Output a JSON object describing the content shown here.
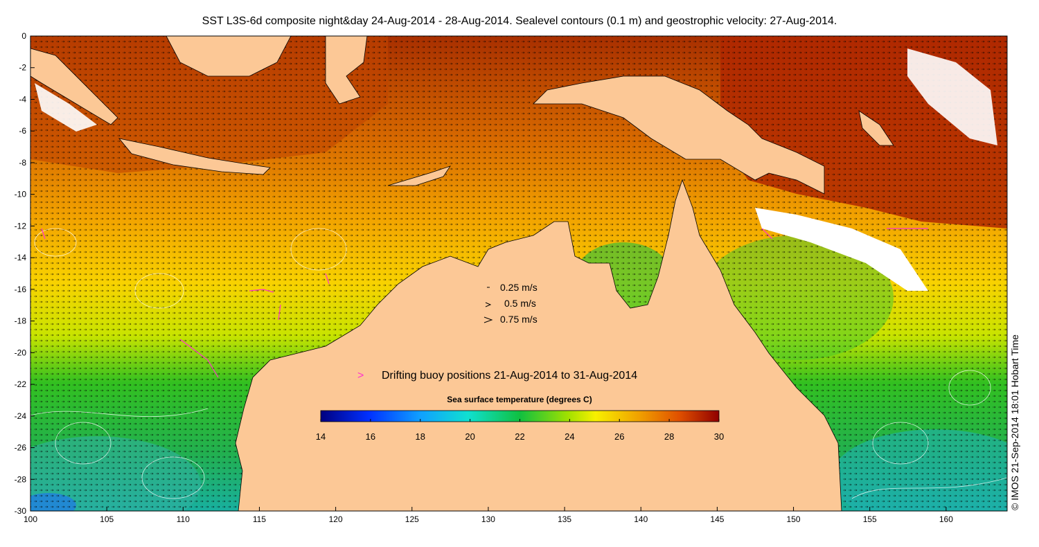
{
  "title": "SST L3S-6d composite night&day 24-Aug-2014 - 28-Aug-2014. Sealevel contours (0.1 m) and geostrophic velocity: 27-Aug-2014.",
  "axes": {
    "x_ticks": [
      "100",
      "105",
      "110",
      "115",
      "120",
      "125",
      "130",
      "135",
      "140",
      "145",
      "150",
      "155",
      "160"
    ],
    "y_ticks": [
      "0",
      "-2",
      "-4",
      "-6",
      "-8",
      "-10",
      "-12",
      "-14",
      "-16",
      "-18",
      "-20",
      "-22",
      "-24",
      "-26",
      "-28",
      "-30"
    ],
    "lon_range": [
      100,
      164
    ],
    "lat_range": [
      -30,
      0
    ]
  },
  "velocity_legend": [
    {
      "label": "0.25 m/s"
    },
    {
      "label": "0.5 m/s"
    },
    {
      "label": "0.75 m/s"
    }
  ],
  "buoy_legend": {
    "symbol": ">",
    "label": "Drifting buoy positions 21-Aug-2014 to 31-Aug-2014",
    "color": "#ff33cc"
  },
  "colorbar": {
    "title": "Sea surface temperature (degrees C)",
    "ticks": [
      "14",
      "16",
      "18",
      "20",
      "22",
      "24",
      "26",
      "28",
      "30"
    ],
    "range": [
      14,
      30
    ]
  },
  "credit": "© IMOS 21-Sep-2014 18:01 Hobart Time",
  "colors": {
    "land": "#fcc896",
    "cloud": "#ffffff",
    "buoy": "#ff33cc"
  }
}
